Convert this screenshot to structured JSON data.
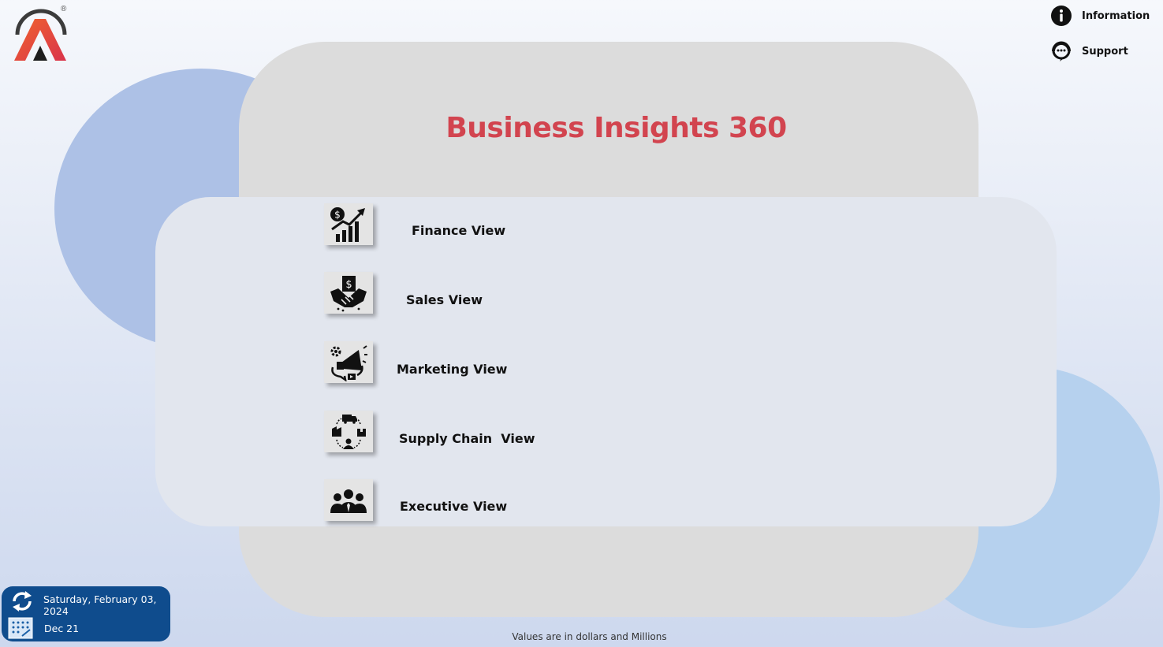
{
  "header": {
    "title": "Business Insights 360",
    "logo_icon": "atliq-logo-icon",
    "logo_mark": "®"
  },
  "top_links": [
    {
      "label": "Information",
      "icon": "info-icon"
    },
    {
      "label": "Support",
      "icon": "support-chat-icon"
    }
  ],
  "nav": [
    {
      "label": "Finance View",
      "icon": "finance-chart-icon"
    },
    {
      "label": "Sales View",
      "icon": "handshake-icon"
    },
    {
      "label": "Marketing View",
      "icon": "megaphone-icon"
    },
    {
      "label": "Supply Chain  View",
      "icon": "supply-chain-icon"
    },
    {
      "label": "Executive View",
      "icon": "executives-icon"
    }
  ],
  "refresh": {
    "date": "Saturday, February 03, 2024",
    "period": "Dec 21",
    "refresh_icon": "refresh-icon",
    "calendar_icon": "calendar-icon"
  },
  "footer": {
    "note": "Values are in dollars and Millions"
  },
  "colors": {
    "title": "#d2444f",
    "refresh_box": "#0f4c8d",
    "logo_gradient_start": "#f0642f",
    "logo_gradient_end": "#d9334b"
  }
}
